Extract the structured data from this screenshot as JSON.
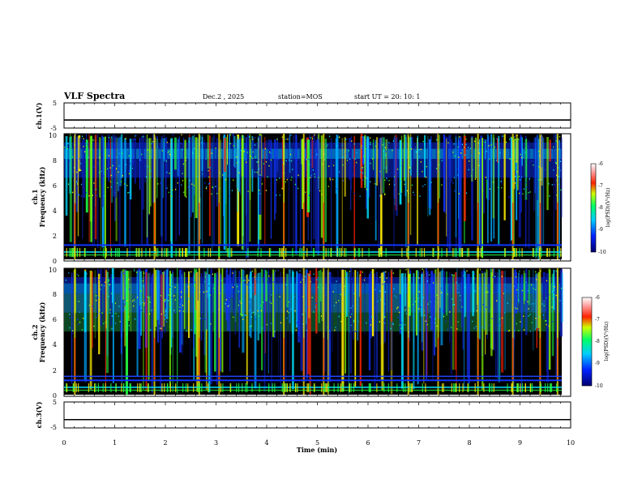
{
  "header": {
    "title": "VLF Spectra",
    "date": "Dec.2  , 2025",
    "station": "station=MOS",
    "start_ut": "start  UT  =   20: 10: 1"
  },
  "chart_data": [
    {
      "type": "line",
      "name": "ch1-waveform",
      "ylabel": "ch.1(V)",
      "ylim": [
        -5,
        5
      ],
      "ytick_labels": [
        "5",
        "-5"
      ],
      "x": [
        0,
        10
      ],
      "values": [
        -1.8,
        -1.8
      ]
    },
    {
      "type": "heatmap",
      "name": "ch1-spectrogram",
      "ylabel_line1": "ch.1",
      "ylabel_line2": "Frequency  (kHz)",
      "ylim": [
        0,
        10
      ],
      "ytick_labels": [
        "0",
        "2",
        "4",
        "6",
        "8",
        "10"
      ],
      "colorbar": {
        "label": "log(PSD)(V²/Hz)",
        "range": [
          -10,
          -6
        ],
        "tick_labels": [
          "-6",
          "-7",
          "-8",
          "-9",
          "-10"
        ]
      }
    },
    {
      "type": "heatmap",
      "name": "ch2-spectrogram",
      "ylabel_line1": "ch.2",
      "ylabel_line2": "Frequency  (kHz)",
      "ylim": [
        0,
        10
      ],
      "ytick_labels": [
        "0",
        "2",
        "4",
        "6",
        "8",
        "10"
      ],
      "colorbar": {
        "label": "log(PSD)(V²/Hz)",
        "range": [
          -10,
          -6
        ],
        "tick_labels": [
          "-6",
          "-7",
          "-8",
          "-9",
          "-10"
        ]
      }
    },
    {
      "type": "line",
      "name": "ch3-waveform",
      "ylabel": "ch.3(V)",
      "ylim": [
        -5,
        5
      ],
      "ytick_labels": [
        "5",
        "-5"
      ],
      "x": [
        0,
        10
      ],
      "values": [
        -1.8,
        -1.8
      ]
    }
  ],
  "xaxis": {
    "label": "Time  (min)",
    "range": [
      0,
      10
    ],
    "tick_labels": [
      "0",
      "1",
      "2",
      "3",
      "4",
      "5",
      "6",
      "7",
      "8",
      "9",
      "10"
    ]
  },
  "colors": {
    "background": "#000000",
    "blue": "#1133ff",
    "cyan": "#00e0ff",
    "green": "#22ff44",
    "yellow": "#ffee00",
    "red": "#ff2200"
  }
}
